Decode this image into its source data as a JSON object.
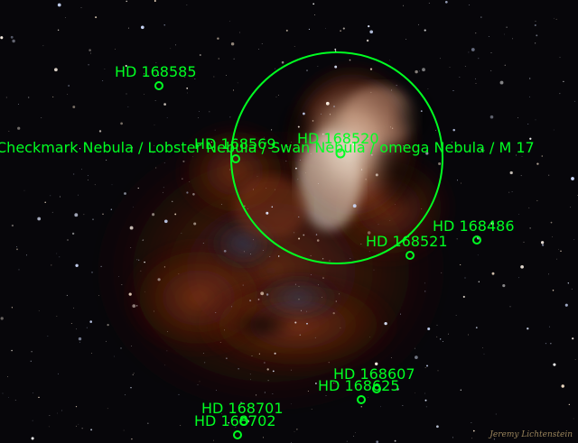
{
  "image": {
    "subject": "Messier 17 nebula field with plate-solve annotations",
    "annotation_color": "#00ff22",
    "nebula_label": "Checkmark Nebula / Lobster Nebula / Swan Nebula / omega Nebula / M 17",
    "stars": [
      {
        "label": "HD 168585"
      },
      {
        "label": "HD 168569"
      },
      {
        "label": "HD 168520"
      },
      {
        "label": "HD 168486"
      },
      {
        "label": "HD 168521"
      },
      {
        "label": "HD 168607"
      },
      {
        "label": "HD 168625"
      },
      {
        "label": "HD 168701"
      },
      {
        "label": "HD 168702"
      }
    ],
    "signature": "Jeremy Lichtenstein"
  }
}
